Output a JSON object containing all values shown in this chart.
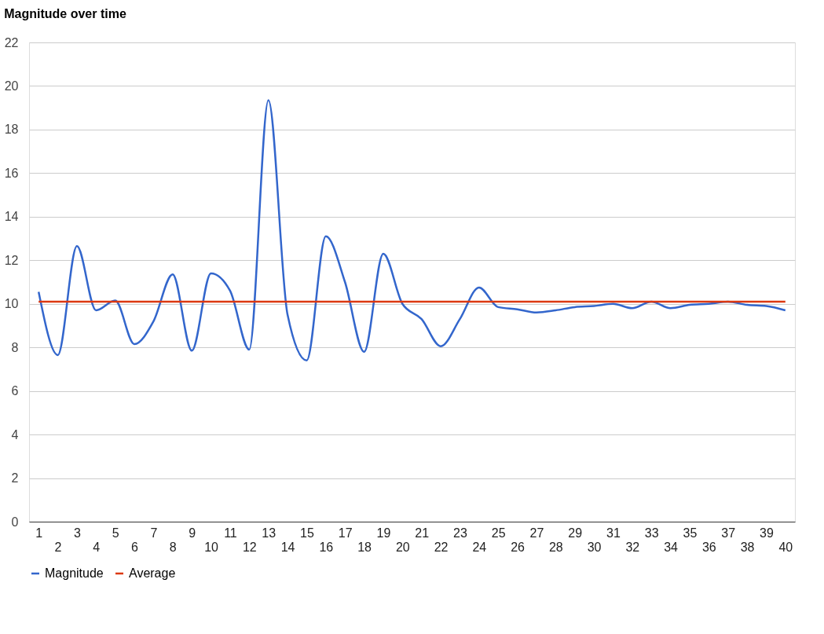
{
  "chart_data": {
    "type": "line",
    "title": "Magnitude over time",
    "categories": [
      "1",
      "2",
      "3",
      "4",
      "5",
      "6",
      "7",
      "8",
      "9",
      "10",
      "11",
      "12",
      "13",
      "14",
      "15",
      "16",
      "17",
      "18",
      "19",
      "20",
      "21",
      "22",
      "23",
      "24",
      "25",
      "26",
      "27",
      "28",
      "29",
      "30",
      "31",
      "32",
      "33",
      "34",
      "35",
      "36",
      "37",
      "38",
      "39",
      "40"
    ],
    "series": [
      {
        "name": "Magnitude",
        "color": "#3366cc",
        "values": [
          10.55,
          7.65,
          12.65,
          9.7,
          10.15,
          8.15,
          9.2,
          11.35,
          7.85,
          11.4,
          10.6,
          7.9,
          19.35,
          9.5,
          7.4,
          13.1,
          11.0,
          7.8,
          12.3,
          10.0,
          9.3,
          8.05,
          9.3,
          10.75,
          9.85,
          9.75,
          9.6,
          9.7,
          9.85,
          9.9,
          10.0,
          9.8,
          10.1,
          9.8,
          9.95,
          10.0,
          10.1,
          9.95,
          9.9,
          9.7
        ]
      },
      {
        "name": "Average",
        "color": "#dc3912",
        "values": [
          10.1,
          10.1,
          10.1,
          10.1,
          10.1,
          10.1,
          10.1,
          10.1,
          10.1,
          10.1,
          10.1,
          10.1,
          10.1,
          10.1,
          10.1,
          10.1,
          10.1,
          10.1,
          10.1,
          10.1,
          10.1,
          10.1,
          10.1,
          10.1,
          10.1,
          10.1,
          10.1,
          10.1,
          10.1,
          10.1,
          10.1,
          10.1,
          10.1,
          10.1,
          10.1,
          10.1,
          10.1,
          10.1,
          10.1,
          10.1
        ]
      }
    ],
    "ylim": [
      0,
      22
    ],
    "yticks": [
      0,
      2,
      4,
      6,
      8,
      10,
      12,
      14,
      16,
      18,
      20,
      22
    ],
    "grid": "y",
    "legend": "bottom"
  }
}
